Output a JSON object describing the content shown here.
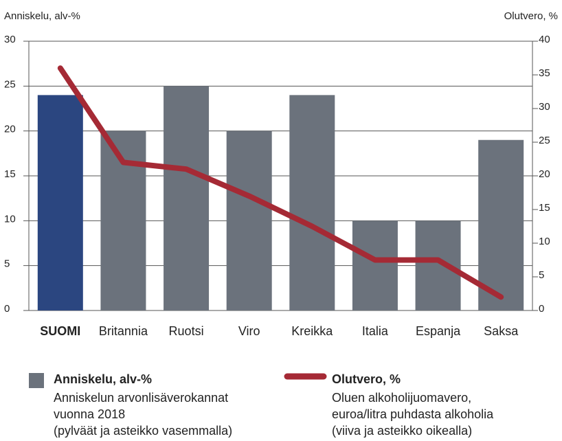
{
  "chart_data": {
    "type": "bar-line",
    "y_label": "Anniskelu, alv-%",
    "y2_label": "Olutvero, %",
    "categories": [
      "SUOMI",
      "Britannia",
      "Ruotsi",
      "Viro",
      "Kreikka",
      "Italia",
      "Espanja",
      "Saksa"
    ],
    "series": [
      {
        "name": "Anniskelu, alv-%",
        "type": "bar",
        "color": "#6b727c",
        "colors": [
          "#2b4680",
          "#6b727c",
          "#6b727c",
          "#6b727c",
          "#6b727c",
          "#6b727c",
          "#6b727c",
          "#6b727c"
        ],
        "values": [
          24,
          20,
          25,
          20,
          24,
          10,
          10,
          19
        ],
        "description": [
          "Anniskelun arvonlisäverokannat",
          "vuonna 2018",
          "(pylväät ja asteikko vasemmalla)"
        ]
      },
      {
        "name": "Olutvero, %",
        "type": "line",
        "axis": "y2",
        "color": "#a52a35",
        "values": [
          36,
          22,
          21,
          17,
          12.5,
          7.5,
          7.5,
          2
        ],
        "description": [
          "Oluen alkoholijuomavero,",
          "euroa/litra puhdasta alkoholia",
          "(viiva ja asteikko oikealla)"
        ]
      }
    ],
    "ylim": [
      0,
      30
    ],
    "yticks": [
      0,
      5,
      10,
      15,
      20,
      25,
      30
    ],
    "y2lim": [
      0,
      40
    ],
    "y2ticks": [
      0,
      5,
      10,
      15,
      20,
      25,
      30,
      35,
      40
    ],
    "grid": true
  }
}
